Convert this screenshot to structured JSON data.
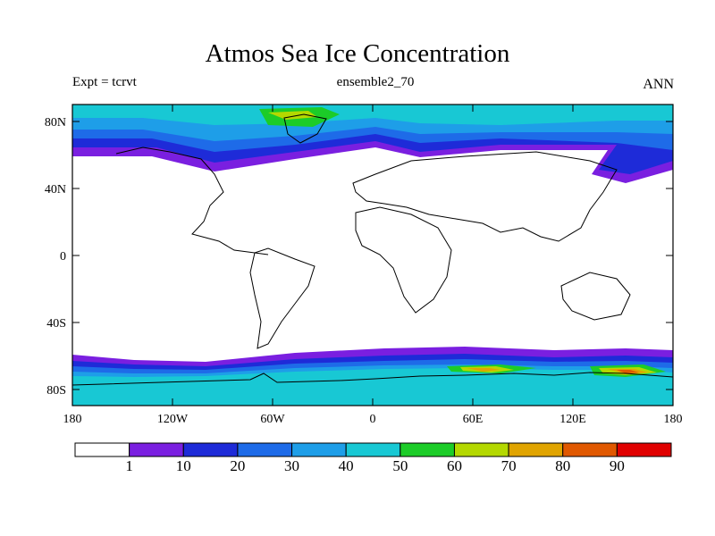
{
  "title": "Atmos Sea Ice Concentration",
  "experiment_label": "Expt = tcrvt",
  "subtitle": "ensemble2_70",
  "season": "ANN",
  "lat_ticks": [
    "80N",
    "40N",
    "0",
    "40S",
    "80S"
  ],
  "lon_ticks": [
    "180",
    "120W",
    "60W",
    "0",
    "60E",
    "120E",
    "180"
  ],
  "colorbar": {
    "labels": [
      "1",
      "10",
      "20",
      "30",
      "40",
      "50",
      "60",
      "70",
      "80",
      "90"
    ],
    "colors": [
      "#ffffff",
      "#7a1fe0",
      "#1e2bd8",
      "#1e6be8",
      "#1e9ee8",
      "#18c8d4",
      "#1ccc28",
      "#b4d800",
      "#e0a400",
      "#e05800",
      "#e00000"
    ]
  },
  "map": {
    "projection": "cylindrical-equidistant",
    "extent": {
      "lon": [
        -180,
        180
      ],
      "lat": [
        -90,
        90
      ]
    },
    "field": "sea ice concentration (%)"
  }
}
